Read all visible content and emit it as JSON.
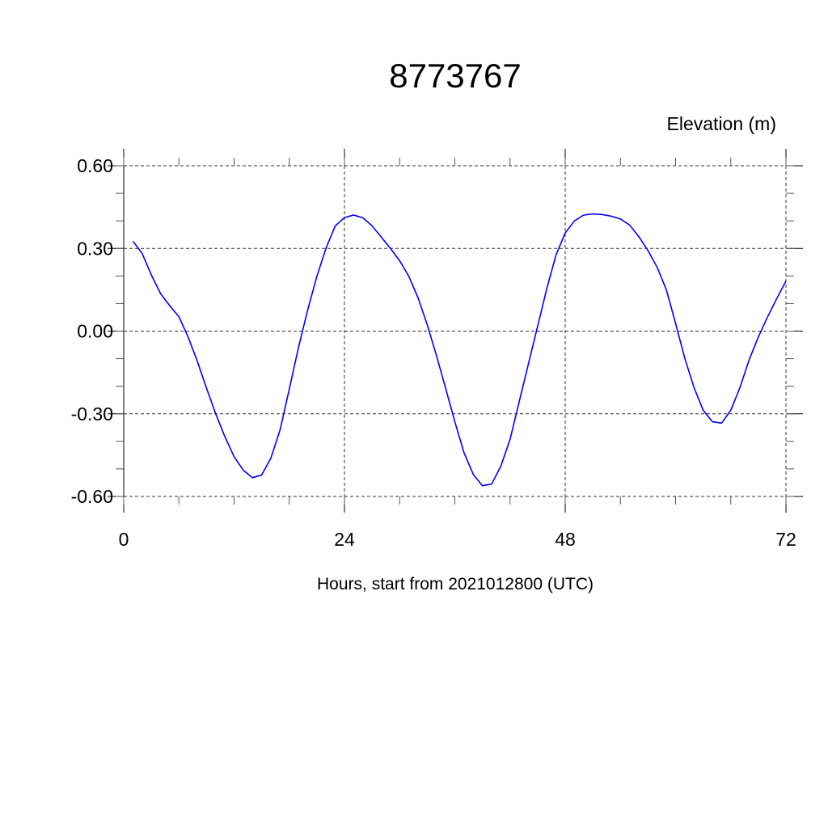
{
  "chart_data": {
    "type": "line",
    "title": "8773767",
    "ylabel": "Elevation (m)",
    "xlabel": "Hours, start from 2021012800 (UTC)",
    "xlim": [
      0,
      72
    ],
    "ylim": [
      -0.6,
      0.6
    ],
    "x_major_ticks": [
      0,
      24,
      48,
      72
    ],
    "x_tick_labels": [
      "0",
      "24",
      "48",
      "72"
    ],
    "x_minor_step": 6,
    "y_major_ticks": [
      0.6,
      0.3,
      0.0,
      -0.3,
      -0.6
    ],
    "y_tick_labels": [
      "0.60",
      "0.30",
      "0.00",
      "-0.30",
      "-0.60"
    ],
    "y_minor_step": 0.1,
    "grid": true,
    "line_color": "#0000ff",
    "series": [
      {
        "x": [
          1,
          2,
          3,
          4,
          5,
          6,
          7,
          8,
          9,
          10,
          11,
          12,
          13,
          14,
          15,
          16,
          17,
          18,
          19,
          20,
          21,
          22,
          23,
          24,
          25,
          26,
          27,
          28,
          29,
          30,
          31,
          32,
          33,
          34,
          35,
          36,
          37,
          38,
          39,
          40,
          41,
          42,
          43,
          44,
          45,
          46,
          47,
          48,
          49,
          50,
          51,
          52,
          53,
          54,
          55,
          56,
          57,
          58,
          59,
          60,
          61,
          62,
          63,
          64,
          65,
          66,
          67,
          68,
          69,
          70,
          71,
          72
        ],
        "y": [
          0.326,
          0.282,
          0.204,
          0.136,
          0.092,
          0.052,
          -0.021,
          -0.109,
          -0.207,
          -0.3,
          -0.383,
          -0.456,
          -0.505,
          -0.532,
          -0.522,
          -0.461,
          -0.358,
          -0.21,
          -0.06,
          0.077,
          0.199,
          0.302,
          0.382,
          0.412,
          0.421,
          0.411,
          0.382,
          0.341,
          0.3,
          0.255,
          0.199,
          0.121,
          0.023,
          -0.089,
          -0.207,
          -0.329,
          -0.442,
          -0.52,
          -0.561,
          -0.555,
          -0.49,
          -0.393,
          -0.256,
          -0.119,
          0.018,
          0.155,
          0.276,
          0.356,
          0.4,
          0.421,
          0.425,
          0.423,
          0.417,
          0.407,
          0.385,
          0.343,
          0.292,
          0.231,
          0.15,
          0.028,
          -0.099,
          -0.205,
          -0.287,
          -0.329,
          -0.334,
          -0.287,
          -0.205,
          -0.104,
          -0.021,
          0.052,
          0.118,
          0.182
        ]
      }
    ]
  }
}
